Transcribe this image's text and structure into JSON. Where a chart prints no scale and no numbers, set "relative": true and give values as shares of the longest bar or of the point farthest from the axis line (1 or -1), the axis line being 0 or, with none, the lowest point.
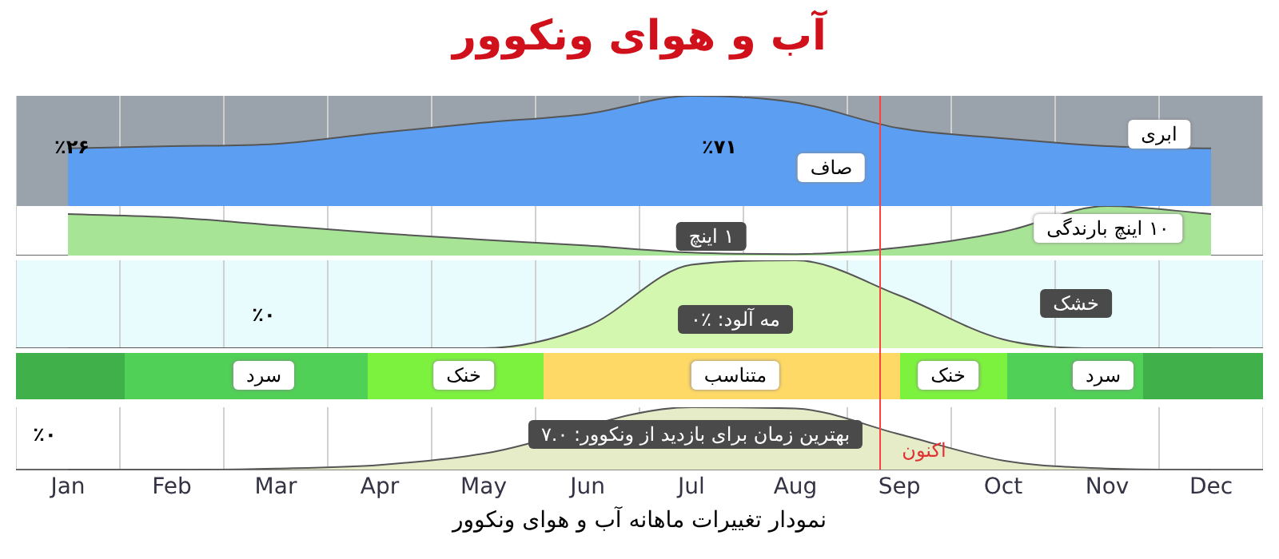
{
  "chart_data": [
    {
      "type": "area",
      "title": "آب و هوای ونکوور",
      "categories": [
        null,
        null,
        null,
        null,
        null,
        null,
        null,
        null,
        null,
        null,
        null,
        null
      ],
      "relative": true,
      "tick_labels": false,
      "grid": "x",
      "series": [
        {
          "color": "#5c9ff2",
          "values": [
            0.53,
            0.55,
            0.57,
            0.67,
            0.76,
            0.84,
            1,
            0.94,
            0.71,
            0.62,
            0.55,
            0.53
          ]
        }
      ],
      "annotations": [
        "٪۲۶",
        "٪۷۱",
        "صاف",
        "ابری"
      ]
    },
    {
      "type": "area",
      "categories": [
        null,
        null,
        null,
        null,
        null,
        null,
        null,
        null,
        null,
        null,
        null,
        null
      ],
      "relative": true,
      "tick_labels": false,
      "grid": "x",
      "series": [
        {
          "color": "#a8e496",
          "values": [
            0.84,
            0.77,
            0.61,
            0.45,
            0.32,
            0.2,
            0.06,
            0.03,
            0.16,
            0.48,
            1,
            0.84
          ]
        }
      ],
      "annotations": [
        "۱ اینچ",
        "۱۰ اینچ بارندگی"
      ]
    },
    {
      "type": "area",
      "categories": [
        null,
        null,
        null,
        null,
        null,
        null,
        null,
        null,
        null,
        null,
        null,
        null
      ],
      "relative": true,
      "tick_labels": false,
      "grid": "x",
      "series": [
        {
          "color": "#d4f7b0",
          "values": [
            0,
            0,
            0,
            0,
            0,
            0.25,
            0.95,
            1,
            0.6,
            0.1,
            0,
            0
          ]
        }
      ],
      "annotations": [
        "٪۰",
        "مه آلود: ٪۰",
        "خشک"
      ]
    },
    {
      "type": "other",
      "colors": [
        "#40b04a",
        "#50d056",
        "#7cf23e",
        "#ffd966",
        "#7cf23e",
        "#50d056",
        "#40b04a"
      ],
      "annotations": [
        "سرد",
        "خنک",
        "متناسب",
        "خنک",
        "سرد"
      ]
    },
    {
      "type": "area",
      "categories": [
        "Jan",
        "Feb",
        "Mar",
        "Apr",
        "May",
        "Jun",
        "Jul",
        "Aug",
        "Sep",
        "Oct",
        "Nov",
        "Dec"
      ],
      "relative": true,
      "tick_labels": "x",
      "grid": "x",
      "xlabel": "نمودار تغییرات  ماهانه آب و هوای ونکوور",
      "series": [
        {
          "color": "#e6ecc8",
          "values": [
            0,
            0,
            0.02,
            0.08,
            0.26,
            null,
            1,
            0.98,
            0.57,
            0.15,
            0.02,
            0
          ]
        }
      ],
      "annotations": [
        "٪۰",
        "بهترین زمان برای بازدید از ونکوور: ۷.۰",
        "اکنون"
      ]
    }
  ]
}
